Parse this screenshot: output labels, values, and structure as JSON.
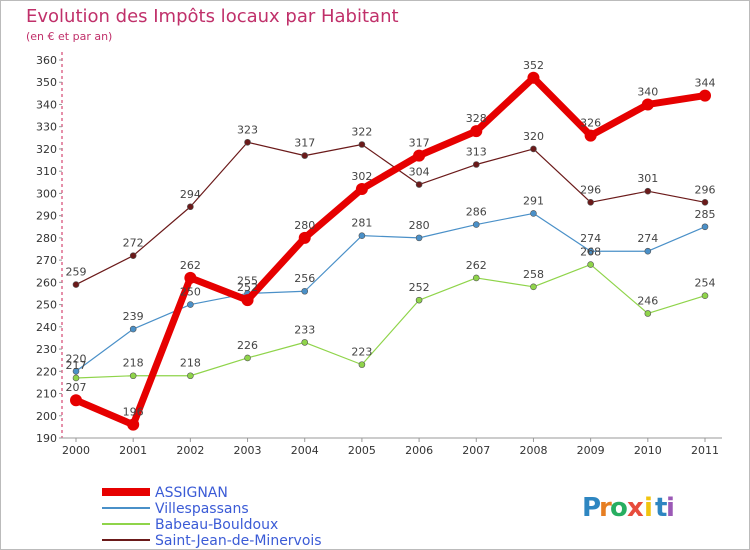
{
  "chart_data": {
    "type": "line",
    "title": "Evolution des Impôts locaux par Habitant",
    "subtitle": "(en € et par an)",
    "xlabel": "",
    "ylabel": "",
    "x": [
      "2000",
      "2001",
      "2002",
      "2003",
      "2004",
      "2005",
      "2006",
      "2007",
      "2008",
      "2009",
      "2010",
      "2011"
    ],
    "ylim": [
      190,
      360
    ],
    "yticks": [
      190,
      200,
      210,
      220,
      230,
      240,
      250,
      260,
      270,
      280,
      290,
      300,
      310,
      320,
      330,
      340,
      350,
      360
    ],
    "grid": false,
    "legend_position": "bottom-left",
    "series": [
      {
        "name": "Saint-Jean-de-Minervois",
        "color": "#6b1a1a",
        "values": [
          259,
          272,
          294,
          323,
          317,
          322,
          304,
          313,
          320,
          296,
          301,
          296
        ]
      },
      {
        "name": "Villespassans",
        "color": "#4a90c8",
        "values": [
          220,
          239,
          250,
          255,
          256,
          281,
          280,
          286,
          291,
          274,
          274,
          285
        ]
      },
      {
        "name": "Babeau-Bouldoux",
        "color": "#8fd44a",
        "values": [
          217,
          218,
          218,
          226,
          233,
          223,
          252,
          262,
          258,
          268,
          246,
          254
        ]
      },
      {
        "name": "ASSIGNAN",
        "color": "#e60000",
        "values": [
          207,
          196,
          262,
          252,
          280,
          302,
          317,
          328,
          352,
          326,
          340,
          344
        ]
      }
    ],
    "legend_order": [
      "ASSIGNAN",
      "Villespassans",
      "Babeau-Bouldoux",
      "Saint-Jean-de-Minervois"
    ]
  },
  "logo": {
    "letters": [
      "P",
      "r",
      "o",
      "x",
      "i",
      "t",
      "i"
    ],
    "colors": [
      "#2e86c1",
      "#e67e22",
      "#27ae60",
      "#e74c3c",
      "#f1c40f",
      "#2e86c1",
      "#9b59b6"
    ]
  }
}
